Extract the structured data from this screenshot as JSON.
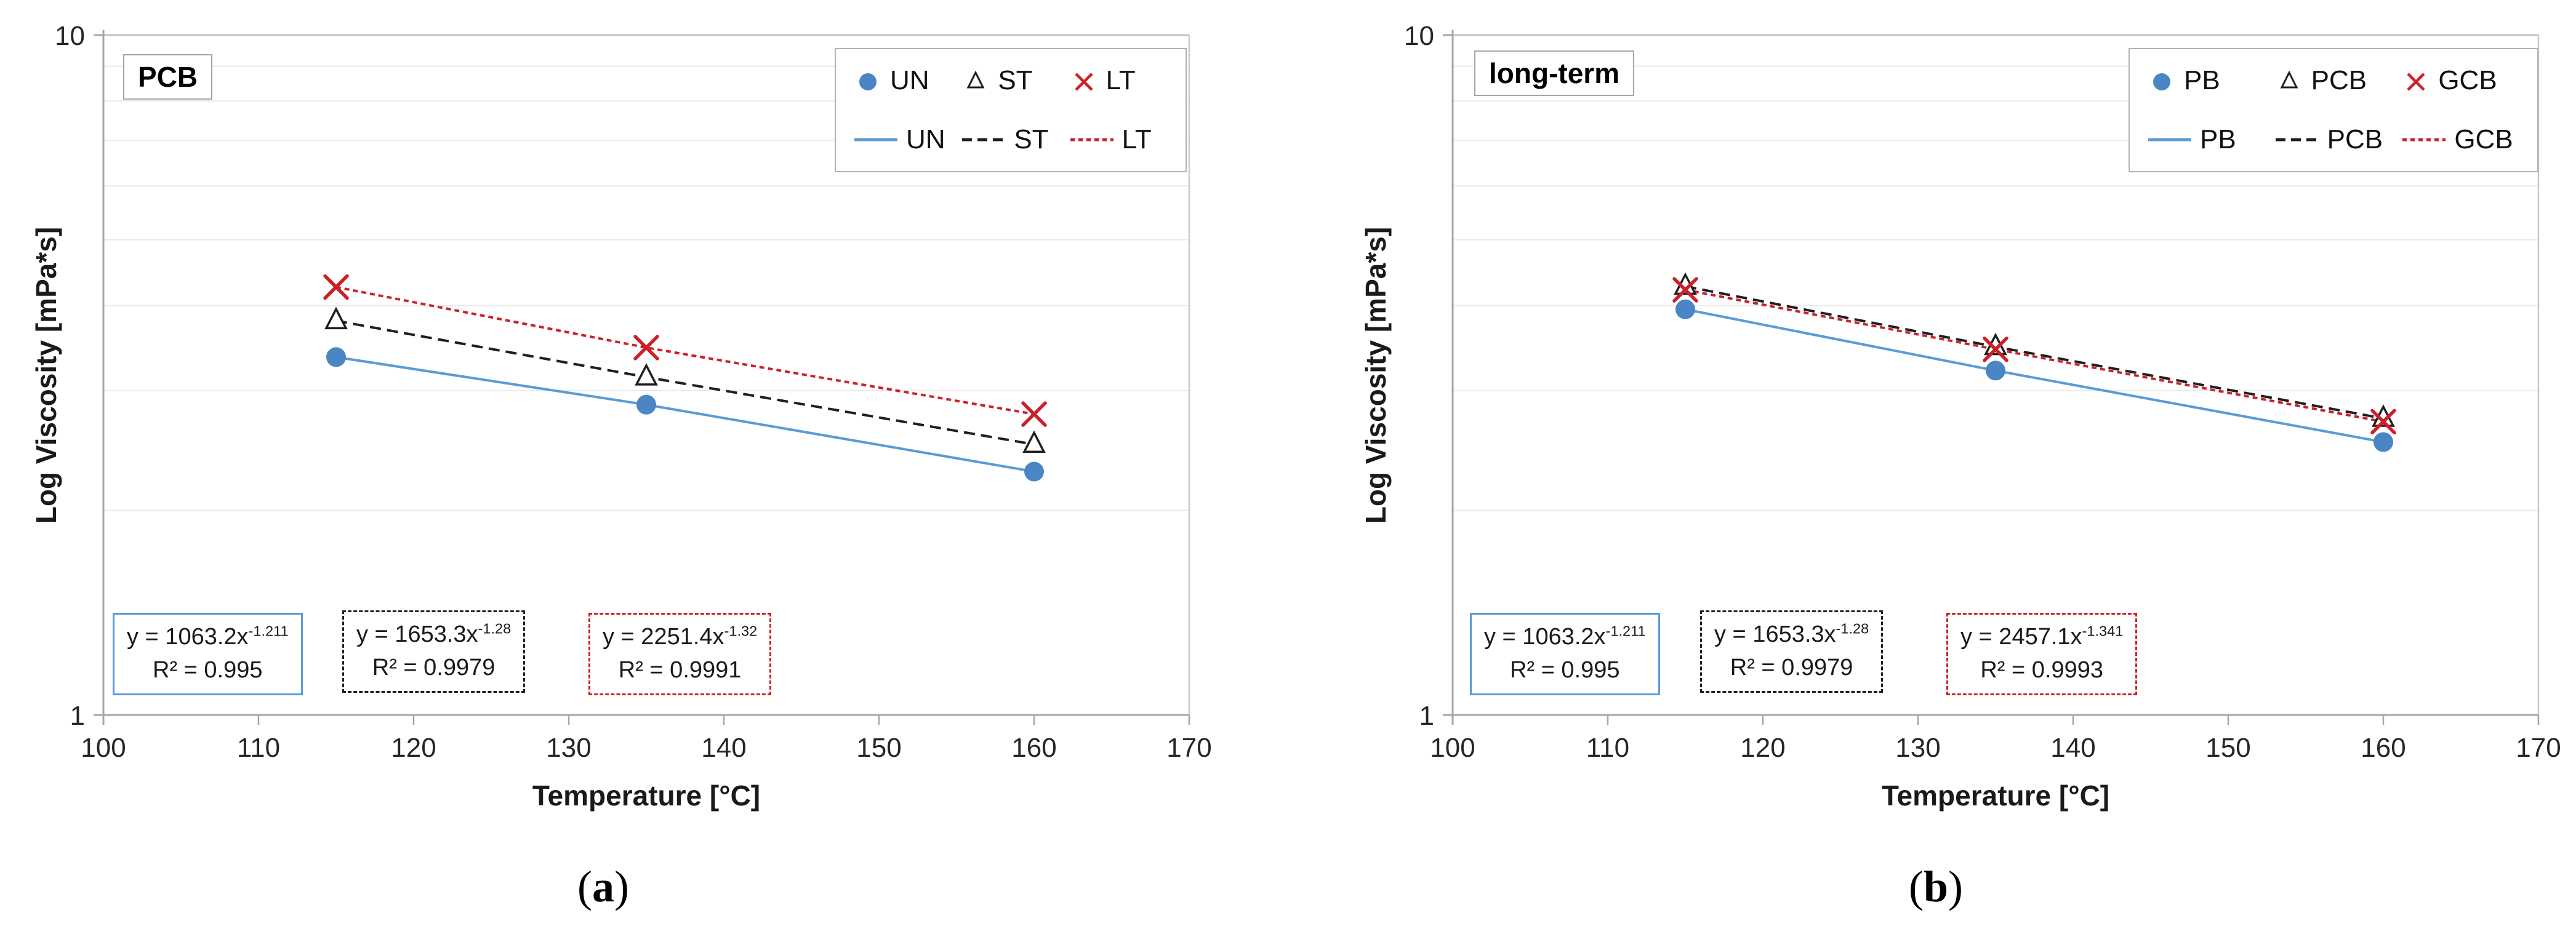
{
  "figure": {
    "background": "#ffffff",
    "caption_open": "(",
    "caption_close": ")"
  },
  "chart_data": [
    {
      "type": "line",
      "panel_letter": "a",
      "title_box": "PCB",
      "xlabel": "Temperature [°C]",
      "ylabel": "Log Viscosity [mPa*s]",
      "yscale": "log",
      "xlim": [
        100,
        170
      ],
      "ylim": [
        1,
        10
      ],
      "x_ticks": [
        100,
        110,
        120,
        130,
        140,
        150,
        160,
        170
      ],
      "y_ticks": [
        1,
        10
      ],
      "grid": "horizontal log minor gridlines at 2-9",
      "legend_position": "top-right",
      "x": [
        115,
        135,
        160
      ],
      "series": [
        {
          "name": "UN",
          "marker": "circle",
          "line_style": "solid",
          "color": "#4a86c4",
          "line_color": "#5b9bd5",
          "values": [
            3.36,
            2.86,
            2.28
          ],
          "trendline": {
            "base": "y = 1063.2x",
            "exponent": "-1.211",
            "r2": "R² = 0.995",
            "box_border": "solid",
            "box_color": "#5b9bd5"
          }
        },
        {
          "name": "ST",
          "marker": "triangle-open",
          "line_style": "dashed",
          "color": "#1f1f1f",
          "line_color": "#1f1f1f",
          "values": [
            3.8,
            3.14,
            2.5
          ],
          "trendline": {
            "base": "y = 1653.3x",
            "exponent": "-1.28",
            "r2": "R² = 0.9979",
            "box_border": "dashed",
            "box_color": "#1f1f1f"
          }
        },
        {
          "name": "LT",
          "marker": "x",
          "line_style": "dotted",
          "color": "#cc2027",
          "line_color": "#cc2027",
          "values": [
            4.26,
            3.47,
            2.77
          ],
          "trendline": {
            "base": "y = 2251.4x",
            "exponent": "-1.32",
            "r2": "R² = 0.9991",
            "box_border": "dashed",
            "box_color": "#cc2027"
          }
        }
      ]
    },
    {
      "type": "line",
      "panel_letter": "b",
      "title_box": "long-term",
      "xlabel": "Temperature [°C]",
      "ylabel": "Log Viscosity [mPa*s]",
      "yscale": "log",
      "xlim": [
        100,
        170
      ],
      "ylim": [
        1,
        10
      ],
      "x_ticks": [
        100,
        110,
        120,
        130,
        140,
        150,
        160,
        170
      ],
      "y_ticks": [
        1,
        10
      ],
      "grid": "horizontal log minor gridlines at 2-9",
      "legend_position": "top-right",
      "x": [
        115,
        135,
        160
      ],
      "series": [
        {
          "name": "PB",
          "marker": "circle",
          "line_style": "solid",
          "color": "#4a86c4",
          "line_color": "#5b9bd5",
          "values": [
            3.95,
            3.21,
            2.52
          ],
          "trendline": {
            "base": "y = 1063.2x",
            "exponent": "-1.211",
            "r2": "R² = 0.995",
            "box_border": "solid",
            "box_color": "#5b9bd5"
          }
        },
        {
          "name": "PCB",
          "marker": "triangle-open",
          "line_style": "dashed",
          "color": "#1f1f1f",
          "line_color": "#1f1f1f",
          "values": [
            4.27,
            3.48,
            2.73
          ],
          "trendline": {
            "base": "y = 1653.3x",
            "exponent": "-1.28",
            "r2": "R² = 0.9979",
            "box_border": "dashed",
            "box_color": "#1f1f1f"
          }
        },
        {
          "name": "GCB",
          "marker": "x",
          "line_style": "dotted",
          "color": "#cc2027",
          "line_color": "#cc2027",
          "values": [
            4.22,
            3.45,
            2.7
          ],
          "trendline": {
            "base": "y = 2457.1x",
            "exponent": "-1.341",
            "r2": "R² = 0.9993",
            "box_border": "dashed",
            "box_color": "#cc2027"
          }
        }
      ]
    }
  ]
}
